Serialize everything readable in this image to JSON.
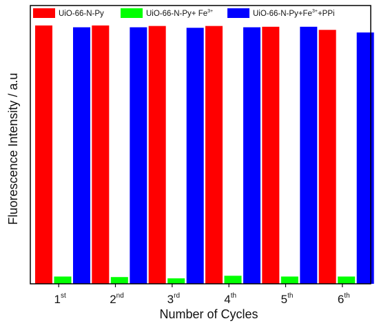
{
  "chart_data": {
    "type": "bar",
    "title": "",
    "xlabel": "Number of Cycles",
    "ylabel": "Fluorescence Intensity / a.u",
    "ylim": [
      0,
      100
    ],
    "y_ticks_shown": false,
    "grid": false,
    "legend_position": "top",
    "categories": [
      {
        "base": "1",
        "sup": "st"
      },
      {
        "base": "2",
        "sup": "nd"
      },
      {
        "base": "3",
        "sup": "rd"
      },
      {
        "base": "4",
        "sup": "th"
      },
      {
        "base": "5",
        "sup": "th"
      },
      {
        "base": "6",
        "sup": "th"
      }
    ],
    "series": [
      {
        "name": "UiO-66-N-Py",
        "legend_parts": [
          {
            "t": "UiO-66-N-Py",
            "sup": false
          }
        ],
        "color": "#ff0000",
        "values": [
          99.5,
          99.5,
          99.3,
          99.3,
          99.0,
          97.8
        ]
      },
      {
        "name": "UiO-66-N-Py+ Fe3+",
        "legend_parts": [
          {
            "t": "UiO-66-N-Py+ Fe",
            "sup": false
          },
          {
            "t": "3+",
            "sup": true
          }
        ],
        "color": "#00ff00",
        "values": [
          2.8,
          2.6,
          2.1,
          3.1,
          2.8,
          2.8
        ]
      },
      {
        "name": "UiO-66-N-Py+Fe3++PPi",
        "legend_parts": [
          {
            "t": "UiO-66-N-Py+Fe",
            "sup": false
          },
          {
            "t": "3+",
            "sup": true
          },
          {
            "t": "+PPi",
            "sup": false
          }
        ],
        "color": "#0000ff",
        "values": [
          98.8,
          98.8,
          98.6,
          98.8,
          99.0,
          96.8
        ]
      }
    ]
  }
}
